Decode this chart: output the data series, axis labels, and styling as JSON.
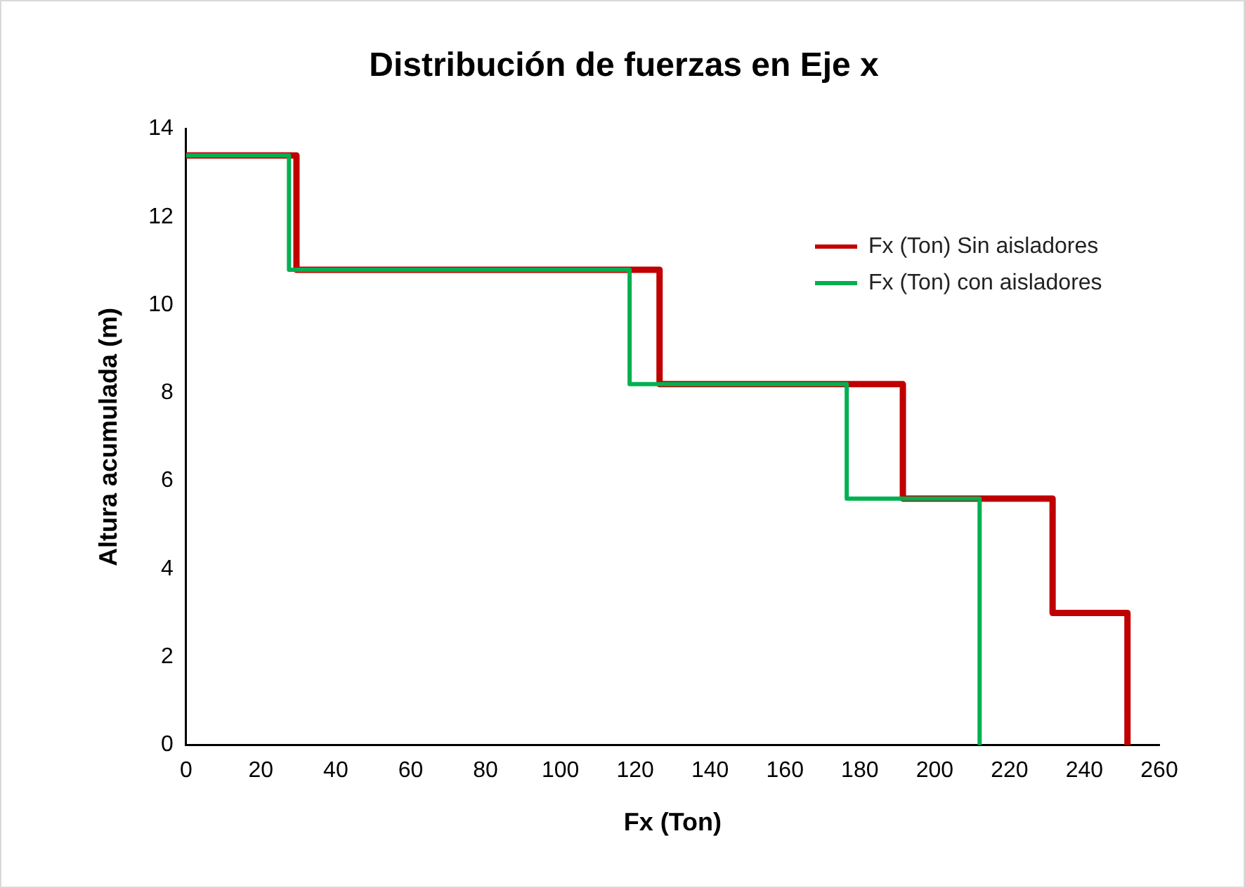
{
  "chart_data": {
    "type": "line",
    "title": "Distribución de fuerzas en Eje x",
    "xlabel": "Fx (Ton)",
    "ylabel": "Altura acumulada (m)",
    "xlim": [
      0,
      260
    ],
    "xticks": [
      0,
      20,
      40,
      60,
      80,
      100,
      120,
      140,
      160,
      180,
      200,
      220,
      240,
      260
    ],
    "ylim": [
      0,
      14
    ],
    "yticks": [
      0,
      2,
      4,
      6,
      8,
      10,
      12,
      14
    ],
    "grid": false,
    "legend": "top right",
    "marker": "none",
    "line_style": "solid",
    "series": [
      {
        "name": "Fx (Ton) Sin aisladores",
        "color": "#c00000",
        "x": [
          0,
          29.5,
          29.5,
          126.5,
          126.5,
          191.5,
          191.5,
          231.5,
          231.5,
          251.5,
          251.5
        ],
        "values": [
          13.4,
          13.4,
          10.8,
          10.8,
          8.2,
          8.2,
          5.6,
          5.6,
          3,
          3,
          0
        ]
      },
      {
        "name": "Fx (Ton) con aisladores",
        "color": "#00b050",
        "x": [
          0,
          27.5,
          27.5,
          118.5,
          118.5,
          176.5,
          176.5,
          212,
          212
        ],
        "values": [
          13.4,
          13.4,
          10.8,
          10.8,
          8.2,
          8.2,
          5.6,
          5.6,
          0
        ]
      }
    ]
  }
}
